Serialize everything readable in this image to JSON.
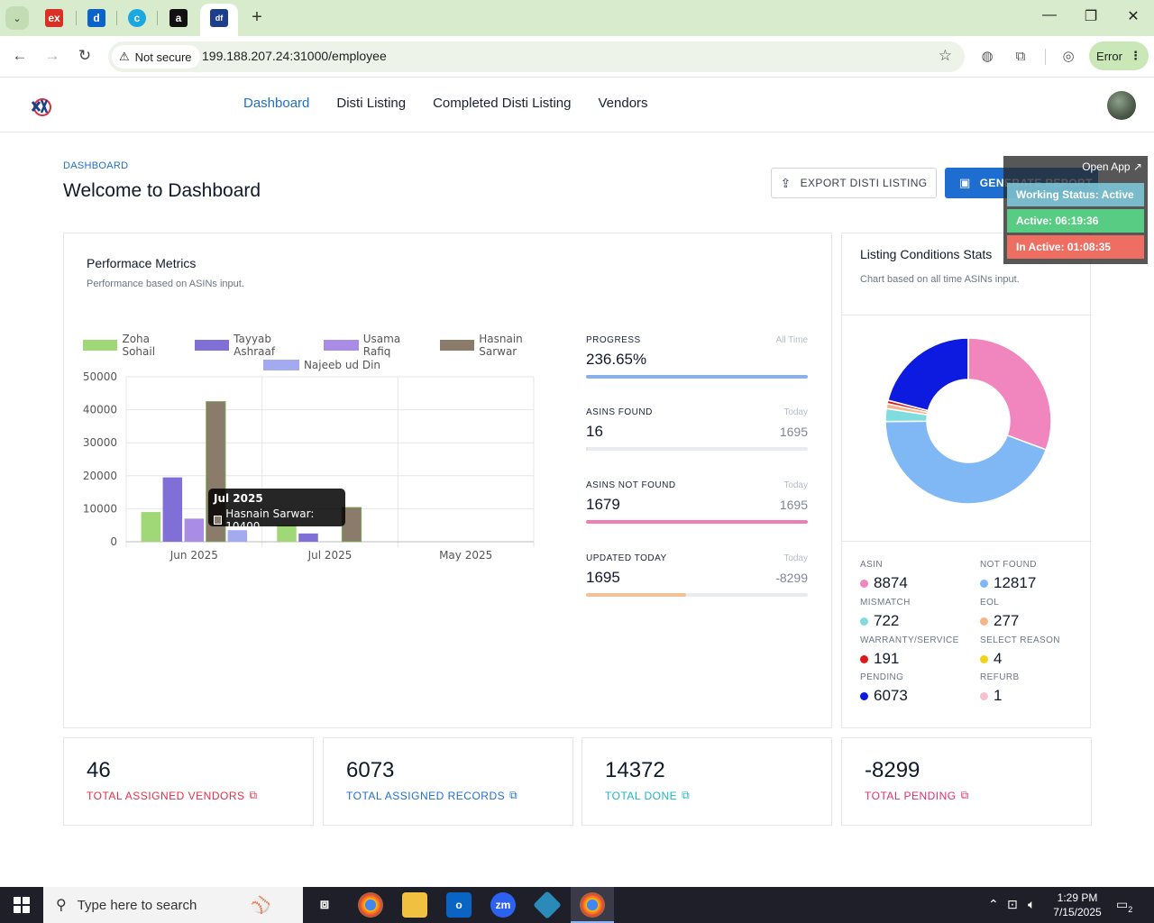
{
  "browser": {
    "security_label": "Not secure",
    "url": "199.188.207.24:31000/employee",
    "error_label": "Error"
  },
  "nav": {
    "items": [
      "Dashboard",
      "Disti Listing",
      "Completed Disti Listing",
      "Vendors"
    ],
    "active": "Dashboard"
  },
  "page": {
    "breadcrumb": "DASHBOARD",
    "title": "Welcome to Dashboard",
    "export_label": "EXPORT DISTI LISTING",
    "generate_label": "GENERATE REPORT"
  },
  "overlay": {
    "open_app": "Open App ↗",
    "working_status": "Working Status: Active",
    "active": "Active: 06:19:36",
    "inactive": "In Active: 01:08:35"
  },
  "performance": {
    "title": "Performace Metrics",
    "subtitle": "Performance based on ASINs input."
  },
  "chart_data": {
    "type": "bar",
    "categories": [
      "Jun 2025",
      "Jul 2025",
      "May 2025"
    ],
    "series": [
      {
        "name": "Zoha Sohail",
        "color": "#a0d878",
        "values": [
          9000,
          5000,
          0
        ]
      },
      {
        "name": "Tayyab Ashraaf",
        "color": "#7f6fd6",
        "values": [
          19500,
          2500,
          0
        ]
      },
      {
        "name": "Usama Rafiq",
        "color": "#a98ce6",
        "values": [
          7000,
          0,
          0
        ]
      },
      {
        "name": "Hasnain Sarwar",
        "color": "#8b7b6b",
        "values": [
          42500,
          10400,
          0
        ]
      },
      {
        "name": "Najeeb ud Din",
        "color": "#a3aaf0",
        "values": [
          3500,
          0,
          0
        ]
      }
    ],
    "ylim": [
      0,
      50000
    ],
    "yticks": [
      "50000",
      "40000",
      "30000",
      "20000",
      "10000",
      "0"
    ],
    "legend": "top",
    "tooltip": {
      "title": "Jul 2025",
      "label": "Hasnain Sarwar: 10400"
    }
  },
  "stats": [
    {
      "label": "PROGRESS",
      "hint": "All Time",
      "value": "236.65%",
      "side": "",
      "fill": 1.0,
      "color": "#8ab0ea"
    },
    {
      "label": "ASINS FOUND",
      "hint": "Today",
      "value": "16",
      "side": "1695",
      "fill": 0.01,
      "color": "#dfe4ea"
    },
    {
      "label": "ASINS NOT FOUND",
      "hint": "Today",
      "value": "1679",
      "side": "1695",
      "fill": 1.0,
      "color": "#ef7fb3"
    },
    {
      "label": "UPDATED TODAY",
      "hint": "Today",
      "value": "1695",
      "side": "-8299",
      "fill": 0.45,
      "color": "#f3c294"
    }
  ],
  "conditions": {
    "title": "Listing Conditions Stats",
    "subtitle": "Chart based on all time ASINs input.",
    "items": [
      {
        "label": "ASIN",
        "value": "8874",
        "color": "#f185bd"
      },
      {
        "label": "NOT FOUND",
        "value": "12817",
        "color": "#7fb8f5"
      },
      {
        "label": "MISMATCH",
        "value": "722",
        "color": "#7fdde0"
      },
      {
        "label": "EOL",
        "value": "277",
        "color": "#f5b58b"
      },
      {
        "label": "WARRANTY/SERVICE",
        "value": "191",
        "color": "#e01818"
      },
      {
        "label": "SELECT REASON",
        "value": "4",
        "color": "#f3d21a"
      },
      {
        "label": "PENDING",
        "value": "6073",
        "color": "#0d1be0"
      },
      {
        "label": "REFURB",
        "value": "1",
        "color": "#f4c2cf"
      }
    ]
  },
  "summary": [
    {
      "value": "46",
      "label": "TOTAL ASSIGNED VENDORS",
      "color": "#e0304a"
    },
    {
      "value": "6073",
      "label": "TOTAL ASSIGNED RECORDS",
      "color": "#1e6ed1"
    },
    {
      "value": "14372",
      "label": "TOTAL DONE",
      "color": "#1fb5c7"
    },
    {
      "value": "-8299",
      "label": "TOTAL PENDING",
      "color": "#e0306a"
    }
  ],
  "taskbar": {
    "search_placeholder": "Type here to search",
    "time": "1:29 PM",
    "date": "7/15/2025",
    "notif_count": "2"
  }
}
